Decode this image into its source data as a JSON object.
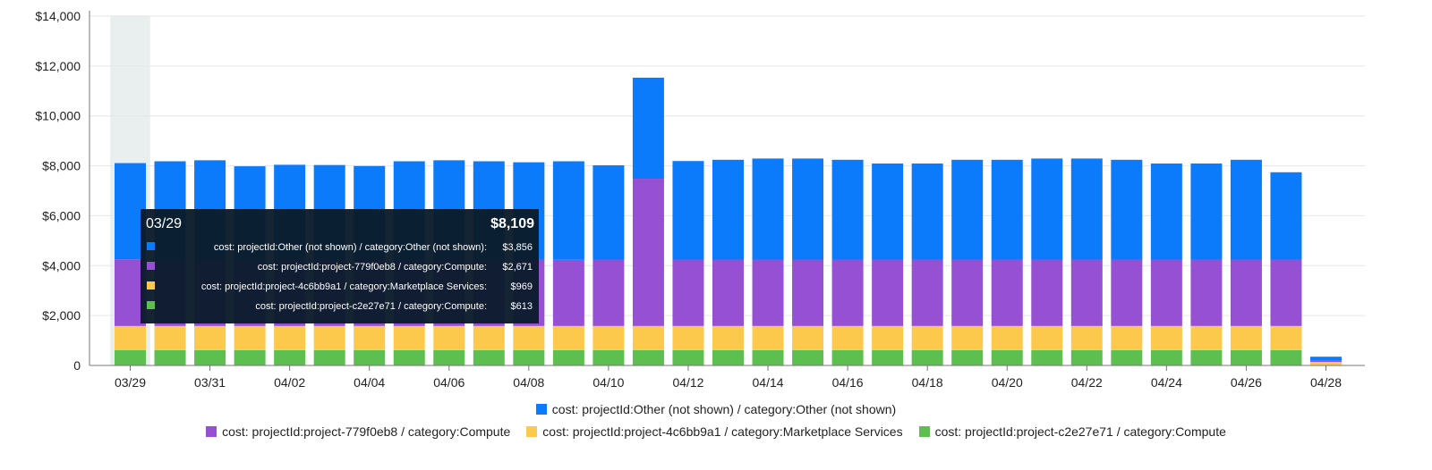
{
  "chart_data": {
    "type": "bar",
    "stacked": true,
    "ylim": [
      0,
      14000
    ],
    "y_ticks": [
      "0",
      "$2,000",
      "$4,000",
      "$6,000",
      "$8,000",
      "$10,000",
      "$12,000",
      "$14,000"
    ],
    "categories": [
      "03/29",
      "03/30",
      "03/31",
      "04/01",
      "04/02",
      "04/03",
      "04/04",
      "04/05",
      "04/06",
      "04/07",
      "04/08",
      "04/09",
      "04/10",
      "04/11",
      "04/12",
      "04/13",
      "04/14",
      "04/15",
      "04/16",
      "04/17",
      "04/18",
      "04/19",
      "04/20",
      "04/21",
      "04/22",
      "04/23",
      "04/24",
      "04/25",
      "04/26",
      "04/27",
      "04/28"
    ],
    "x_tick_labels": [
      "03/29",
      "03/31",
      "04/02",
      "04/04",
      "04/06",
      "04/08",
      "04/10",
      "04/12",
      "04/14",
      "04/16",
      "04/18",
      "04/20",
      "04/22",
      "04/24",
      "04/26",
      "04/28"
    ],
    "highlighted_category": "03/29",
    "series": [
      {
        "name": "cost: projectId:project-c2e27e71 / category:Compute",
        "color": "#5cbf50",
        "values": [
          613,
          613,
          613,
          613,
          613,
          613,
          613,
          613,
          613,
          613,
          613,
          613,
          613,
          613,
          613,
          613,
          613,
          613,
          613,
          613,
          613,
          613,
          613,
          613,
          613,
          613,
          613,
          613,
          613,
          613,
          20
        ]
      },
      {
        "name": "cost: projectId:project-4c6bb9a1 / category:Marketplace Services",
        "color": "#fdc94c",
        "values": [
          969,
          969,
          969,
          969,
          969,
          969,
          969,
          969,
          969,
          969,
          969,
          969,
          969,
          969,
          969,
          969,
          969,
          969,
          969,
          969,
          969,
          969,
          969,
          969,
          969,
          969,
          969,
          969,
          969,
          969,
          120
        ]
      },
      {
        "name": "cost: projectId:project-779f0eb8 / category:Compute",
        "color": "#9550d3",
        "values": [
          2671,
          2650,
          2660,
          2650,
          2660,
          2650,
          2660,
          2650,
          2660,
          2650,
          2660,
          2650,
          2660,
          5900,
          2660,
          2660,
          2660,
          2660,
          2660,
          2660,
          2660,
          2660,
          2660,
          2660,
          2660,
          2660,
          2660,
          2660,
          2660,
          2660,
          60
        ]
      },
      {
        "name": "cost: projectId:Other (not shown) / category:Other (not shown)",
        "color": "#0b7bfc",
        "values": [
          3856,
          3950,
          3980,
          3750,
          3800,
          3800,
          3750,
          3950,
          3980,
          3950,
          3900,
          3950,
          3780,
          4050,
          3950,
          4000,
          4050,
          4050,
          4000,
          3850,
          3850,
          4000,
          4000,
          4050,
          4050,
          4000,
          3850,
          3850,
          4000,
          3500,
          150
        ]
      }
    ],
    "legend": {
      "placement": "bottom",
      "rows": [
        [
          {
            "label": "cost: projectId:Other (not shown) / category:Other (not shown)",
            "color": "#0b7bfc"
          }
        ],
        [
          {
            "label": "cost: projectId:project-779f0eb8 / category:Compute",
            "color": "#9550d3"
          },
          {
            "label": "cost: projectId:project-4c6bb9a1 / category:Marketplace Services",
            "color": "#fdc94c"
          },
          {
            "label": "cost: projectId:project-c2e27e71 / category:Compute",
            "color": "#5cbf50"
          }
        ]
      ]
    },
    "tooltip": {
      "date": "03/29",
      "total": "$8,109",
      "rows": [
        {
          "label": "cost: projectId:Other (not shown) / category:Other (not shown):",
          "value": "$3,856",
          "color": "#0b7bfc"
        },
        {
          "label": "cost: projectId:project-779f0eb8 / category:Compute:",
          "value": "$2,671",
          "color": "#9550d3"
        },
        {
          "label": "cost: projectId:project-4c6bb9a1 / category:Marketplace Services:",
          "value": "$969",
          "color": "#fdc94c"
        },
        {
          "label": "cost: projectId:project-c2e27e71 / category:Compute:",
          "value": "$613",
          "color": "#5cbf50"
        }
      ]
    }
  }
}
